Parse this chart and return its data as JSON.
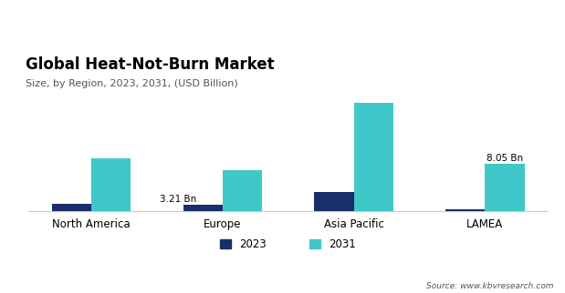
{
  "title": "Global Heat-Not-Burn Market",
  "subtitle": "Size, by Region, 2023, 2031, (USD Billion)",
  "categories": [
    "North America",
    "Europe",
    "Asia Pacific",
    "LAMEA"
  ],
  "values_2023": [
    1.2,
    1.05,
    3.2,
    0.28
  ],
  "values_2031": [
    9.0,
    7.0,
    18.5,
    8.05
  ],
  "color_2023": "#1a2e6b",
  "color_2031": "#40c8c8",
  "source_text": "Source: www.kbvresearch.com",
  "legend_labels": [
    "2023",
    "2031"
  ],
  "ylim": [
    0,
    22
  ],
  "bar_width": 0.3,
  "background_color": "#ffffff",
  "title_fontsize": 12,
  "subtitle_fontsize": 8,
  "tick_fontsize": 8.5,
  "legend_fontsize": 8.5,
  "source_fontsize": 6.5,
  "annotation_fontsize": 7.5
}
